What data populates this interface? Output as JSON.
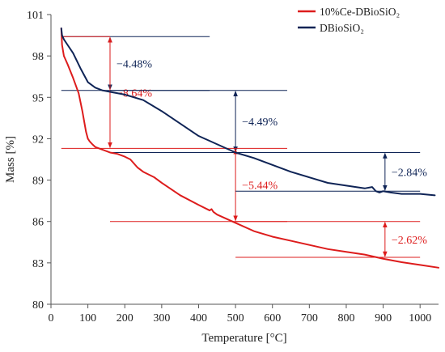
{
  "chart_data": {
    "type": "line",
    "xlabel": "Temperature [°C]",
    "ylabel": "Mass [%]",
    "xlim": [
      0,
      1050
    ],
    "ylim": [
      80,
      101
    ],
    "xticks": [
      0,
      100,
      200,
      300,
      400,
      500,
      600,
      700,
      800,
      900,
      1000
    ],
    "yticks": [
      80,
      83,
      86,
      89,
      92,
      95,
      98,
      101
    ],
    "grid": false,
    "legend_position": "top-right",
    "series": [
      {
        "name": "10%Ce-DBioSiO₂",
        "color": "#dd1c1c",
        "x": [
          28,
          30,
          35,
          45,
          60,
          75,
          85,
          95,
          100,
          105,
          112,
          120,
          140,
          160,
          180,
          200,
          215,
          225,
          235,
          250,
          280,
          300,
          350,
          400,
          430,
          435,
          440,
          450,
          500,
          550,
          600,
          650,
          700,
          750,
          800,
          850,
          900,
          950,
          1000,
          1050
        ],
        "y": [
          100.0,
          98.8,
          98.0,
          97.4,
          96.4,
          95.3,
          94.0,
          92.5,
          92.0,
          91.8,
          91.6,
          91.4,
          91.2,
          91.0,
          90.9,
          90.7,
          90.5,
          90.2,
          89.9,
          89.6,
          89.2,
          88.8,
          87.9,
          87.2,
          86.8,
          86.9,
          86.7,
          86.5,
          85.9,
          85.3,
          84.9,
          84.6,
          84.3,
          84.0,
          83.8,
          83.6,
          83.3,
          83.05,
          82.85,
          82.65
        ]
      },
      {
        "name": "DBioSiO₂",
        "color": "#0f2456",
        "x": [
          28,
          30,
          35,
          45,
          60,
          80,
          100,
          120,
          140,
          160,
          200,
          250,
          300,
          350,
          400,
          450,
          500,
          550,
          600,
          650,
          700,
          750,
          800,
          850,
          870,
          880,
          890,
          900,
          920,
          950,
          1000,
          1040
        ],
        "y": [
          100.0,
          99.5,
          99.2,
          98.8,
          98.2,
          97.1,
          96.1,
          95.7,
          95.5,
          95.4,
          95.2,
          94.8,
          94.0,
          93.1,
          92.2,
          91.6,
          91.0,
          90.6,
          90.1,
          89.6,
          89.2,
          88.8,
          88.6,
          88.4,
          88.5,
          88.2,
          88.1,
          88.2,
          88.1,
          88.0,
          88.0,
          87.9
        ]
      }
    ],
    "annotations": [
      {
        "label": "−4.48%",
        "color": "#0f2456",
        "x": 160,
        "y_top": 99.4,
        "y_bottom": 95.5,
        "line_x0": 28,
        "line_x1": 430
      },
      {
        "label": "−8.64%",
        "color": "#dd1c1c",
        "x": 160,
        "y_top": 99.4,
        "y_bottom": 91.3,
        "line_x0": 28,
        "line_x1": 160
      },
      {
        "label": "−4.49%",
        "color": "#0f2456",
        "x": 500,
        "y_top": 95.5,
        "y_bottom": 91.0,
        "line_x0": 160,
        "line_x1": 640
      },
      {
        "label": "−5.44%",
        "color": "#dd1c1c",
        "x": 500,
        "y_top": 91.3,
        "y_bottom": 86.0,
        "line_x0": 160,
        "line_x1": 640
      },
      {
        "label": "−2.84%",
        "color": "#0f2456",
        "x": 905,
        "y_top": 91.0,
        "y_bottom": 88.2,
        "line_x0": 500,
        "line_x1": 1000
      },
      {
        "label": "−2.62%",
        "color": "#dd1c1c",
        "x": 905,
        "y_top": 86.0,
        "y_bottom": 83.4,
        "line_x0": 500,
        "line_x1": 1000
      }
    ]
  }
}
